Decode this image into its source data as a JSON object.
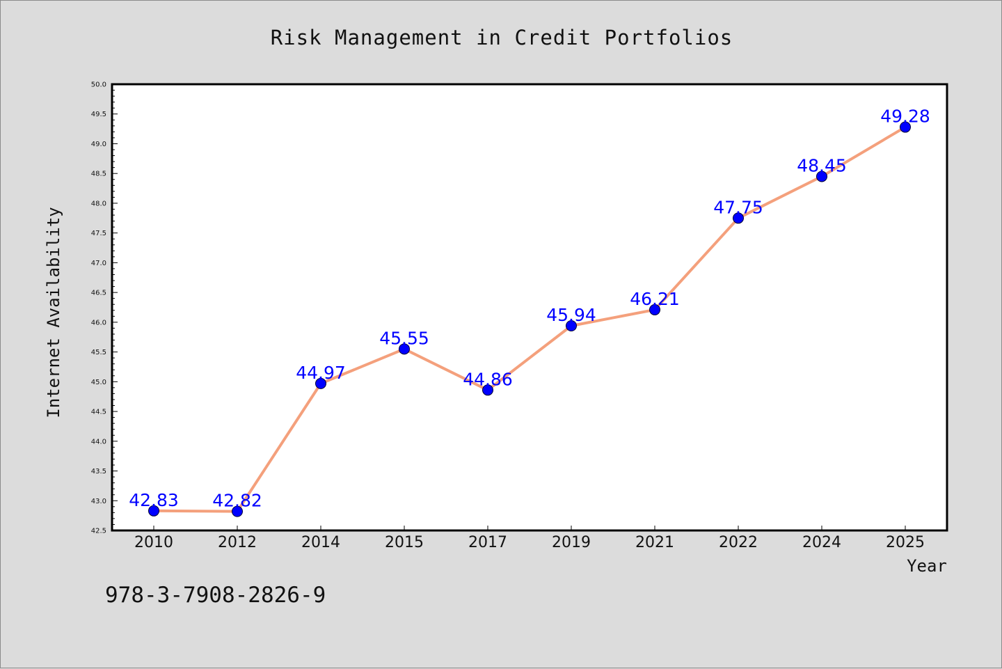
{
  "chart_data": {
    "type": "line",
    "title": "Risk Management in Credit Portfolios",
    "xlabel": "Year",
    "ylabel": "Internet Availability",
    "categories": [
      "2010",
      "2012",
      "2014",
      "2015",
      "2017",
      "2019",
      "2021",
      "2022",
      "2024",
      "2025"
    ],
    "series": [
      {
        "values": [
          42.83,
          42.82,
          44.97,
          45.55,
          44.86,
          45.94,
          46.21,
          47.75,
          48.45,
          49.28
        ],
        "data_labels": [
          "42.83",
          "42.82",
          "44.97",
          "45.55",
          "44.86",
          "45.94",
          "46.21",
          "47.75",
          "48.45",
          "49.28"
        ],
        "line_color": "#f4a07c",
        "marker_color": "#0000ff"
      }
    ],
    "ylim": [
      42.5,
      50.0
    ],
    "yticks": [
      "42.5",
      "43.0",
      "43.5",
      "44.0",
      "44.5",
      "45.0",
      "45.5",
      "46.0",
      "46.5",
      "47.0",
      "47.5",
      "48.0",
      "48.5",
      "49.0",
      "49.5",
      "50.0"
    ],
    "grid": false,
    "legend": false,
    "label_color": "#0000ff"
  },
  "footer": {
    "code": "978-3-7908-2826-9"
  }
}
